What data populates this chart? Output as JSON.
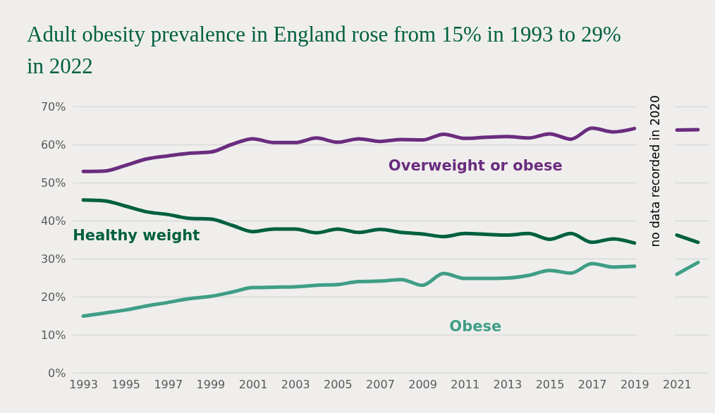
{
  "chart_data": {
    "type": "line",
    "title": "Adult obesity prevalence in England rose from 15% in 1993 to 29% in 2022",
    "x": [
      1993,
      1994,
      1995,
      1996,
      1997,
      1998,
      1999,
      2000,
      2001,
      2002,
      2003,
      2004,
      2005,
      2006,
      2007,
      2008,
      2009,
      2010,
      2011,
      2012,
      2013,
      2014,
      2015,
      2016,
      2017,
      2018,
      2019,
      2020,
      2021,
      2022
    ],
    "series": [
      {
        "name": "Overweight or obese",
        "color": "#6a2c7f",
        "values": [
          52.9,
          53.0,
          54.5,
          56.2,
          57.0,
          57.7,
          58.0,
          60.0,
          61.5,
          60.5,
          60.5,
          61.7,
          60.6,
          61.5,
          60.8,
          61.3,
          61.2,
          62.7,
          61.6,
          61.9,
          62.1,
          61.7,
          62.8,
          61.4,
          64.3,
          63.3,
          64.2,
          null,
          63.8,
          63.9
        ]
      },
      {
        "name": "Healthy weight",
        "color": "#00603f",
        "values": [
          45.4,
          45.2,
          43.8,
          42.3,
          41.6,
          40.6,
          40.4,
          38.8,
          37.1,
          37.8,
          37.8,
          36.8,
          37.8,
          36.9,
          37.7,
          36.9,
          36.5,
          35.8,
          36.6,
          36.4,
          36.2,
          36.6,
          35.1,
          36.6,
          34.3,
          35.2,
          34.1,
          null,
          36.2,
          34.3
        ]
      },
      {
        "name": "Obese",
        "color": "#3f9e86",
        "values": [
          14.9,
          15.7,
          16.5,
          17.6,
          18.5,
          19.5,
          20.1,
          21.2,
          22.4,
          22.5,
          22.6,
          23.0,
          23.2,
          24.0,
          24.1,
          24.5,
          23.0,
          26.1,
          24.8,
          24.8,
          24.9,
          25.6,
          26.9,
          26.2,
          28.7,
          27.8,
          28.0,
          null,
          25.9,
          29.0
        ]
      }
    ],
    "xlim": [
      1992.5,
      2022.5
    ],
    "xticks": [
      1993,
      1995,
      1997,
      1999,
      2001,
      2003,
      2005,
      2007,
      2009,
      2011,
      2013,
      2015,
      2017,
      2019,
      2021
    ],
    "ylim": [
      0,
      70
    ],
    "yticks": [
      {
        "value": 0,
        "label": "0%"
      },
      {
        "value": 10,
        "label": "10%"
      },
      {
        "value": 20,
        "label": "20%"
      },
      {
        "value": 30,
        "label": "30%"
      },
      {
        "value": 40,
        "label": "40%"
      },
      {
        "value": 50,
        "label": "50%"
      },
      {
        "value": 60,
        "label": "60%"
      },
      {
        "value": 70,
        "label": "70%"
      }
    ],
    "bands": [
      {
        "axis": "x",
        "from": 2019.1,
        "to": 2020.9,
        "label": "no data recorded in 2020",
        "color": "#efeeec"
      }
    ],
    "grid": "y",
    "line_style": "solid"
  }
}
